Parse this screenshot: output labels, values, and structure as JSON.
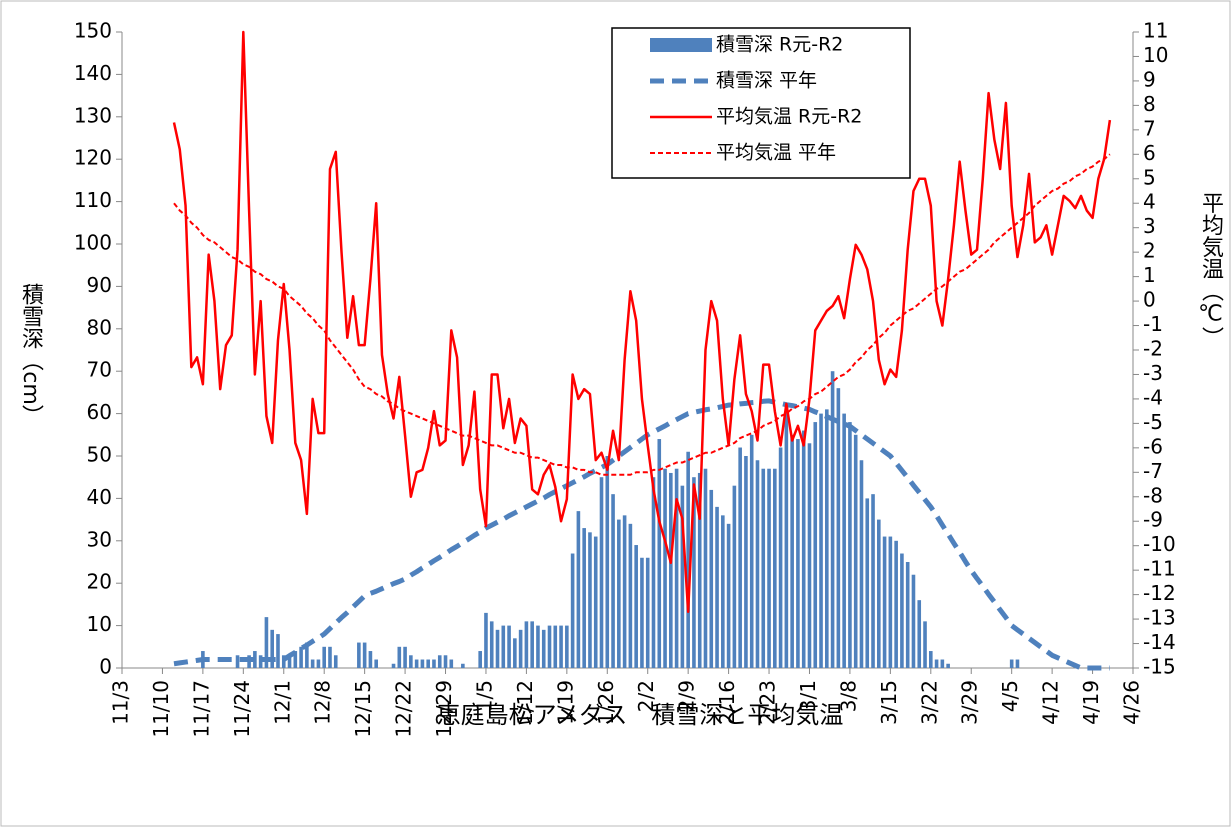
{
  "chart_data": {
    "type": "combo",
    "title": "恵庭島松アメダス　積雪深と平均気温",
    "y_label": "積雪深（cm）",
    "y2_label": "平均気温（℃）",
    "categories": [
      "11/3",
      null,
      null,
      null,
      null,
      null,
      null,
      "11/10",
      null,
      null,
      null,
      null,
      null,
      null,
      "11/17",
      null,
      null,
      null,
      null,
      null,
      null,
      "11/24",
      null,
      null,
      null,
      null,
      null,
      null,
      "12/1",
      null,
      null,
      null,
      null,
      null,
      null,
      "12/8",
      null,
      null,
      null,
      null,
      null,
      null,
      "12/15",
      null,
      null,
      null,
      null,
      null,
      null,
      "12/22",
      null,
      null,
      null,
      null,
      null,
      null,
      "12/29",
      null,
      null,
      null,
      null,
      null,
      null,
      "1/5",
      null,
      null,
      null,
      null,
      null,
      null,
      "1/12",
      null,
      null,
      null,
      null,
      null,
      null,
      "1/19",
      null,
      null,
      null,
      null,
      null,
      null,
      "1/26",
      null,
      null,
      null,
      null,
      null,
      null,
      "2/2",
      null,
      null,
      null,
      null,
      null,
      null,
      "2/9",
      null,
      null,
      null,
      null,
      null,
      null,
      "2/16",
      null,
      null,
      null,
      null,
      null,
      null,
      "2/23",
      null,
      null,
      null,
      null,
      null,
      null,
      "3/1",
      null,
      null,
      null,
      null,
      null,
      null,
      "3/8",
      null,
      null,
      null,
      null,
      null,
      null,
      "3/15",
      null,
      null,
      null,
      null,
      null,
      null,
      "3/22",
      null,
      null,
      null,
      null,
      null,
      null,
      "3/29",
      null,
      null,
      null,
      null,
      null,
      null,
      "4/5",
      null,
      null,
      null,
      null,
      null,
      null,
      "4/12",
      null,
      null,
      null,
      null,
      null,
      null,
      "4/19",
      null,
      null,
      null,
      null,
      null,
      null,
      "4/26"
    ],
    "ylim": [
      0,
      150
    ],
    "yticks": [
      0,
      10,
      20,
      30,
      40,
      50,
      60,
      70,
      80,
      90,
      100,
      110,
      120,
      130,
      140,
      150
    ],
    "y2lim": [
      -15,
      11
    ],
    "y2ticks": [
      -15,
      -14,
      -13,
      -12,
      -11,
      -10,
      -9,
      -8,
      -7,
      -6,
      -5,
      -4,
      -3,
      -2,
      -1,
      0,
      1,
      2,
      3,
      4,
      5,
      6,
      7,
      8,
      9,
      10,
      11
    ],
    "series": [
      {
        "name": "積雪深 R元-R2",
        "kind": "bar",
        "color": "#4f81bd",
        "values": [
          null,
          null,
          null,
          null,
          null,
          null,
          null,
          null,
          null,
          0,
          0,
          0,
          0,
          0,
          4,
          0,
          0,
          0,
          0,
          0,
          3,
          0,
          3,
          4,
          3,
          12,
          9,
          8,
          3,
          3,
          4,
          5,
          6,
          2,
          2,
          5,
          5,
          3,
          0,
          0,
          0,
          6,
          6,
          4,
          2,
          0,
          0,
          1,
          5,
          5,
          3,
          2,
          2,
          2,
          2,
          3,
          3,
          2,
          0,
          1,
          0,
          0,
          4,
          13,
          11,
          9,
          10,
          10,
          7,
          9,
          11,
          11,
          10,
          9,
          10,
          10,
          10,
          10,
          27,
          37,
          33,
          32,
          31,
          45,
          50,
          41,
          35,
          36,
          34,
          29,
          26,
          26,
          45,
          54,
          47,
          46,
          47,
          43,
          51,
          45,
          46,
          47,
          42,
          38,
          36,
          34,
          43,
          52,
          50,
          55,
          49,
          47,
          47,
          47,
          52,
          62,
          55,
          54,
          56,
          53,
          58,
          60,
          61,
          70,
          66,
          60,
          58,
          55,
          49,
          40,
          41,
          35,
          31,
          31,
          30,
          27,
          25,
          22,
          16,
          11,
          4,
          2,
          2,
          1,
          0,
          0,
          0,
          0,
          0,
          0,
          0,
          0,
          0,
          0,
          2,
          2,
          0,
          0,
          0,
          0,
          0,
          0,
          0,
          0,
          0,
          0,
          0,
          0,
          0,
          0,
          0,
          0,
          null,
          null,
          null,
          null
        ]
      },
      {
        "name": "積雪深 平年",
        "kind": "line",
        "line_style": "dashed",
        "color": "#4f81bd",
        "values": [
          null,
          null,
          null,
          null,
          null,
          null,
          null,
          null,
          null,
          1,
          1.2,
          1.4,
          1.6,
          1.8,
          2,
          2,
          2,
          2,
          2,
          2,
          2,
          2,
          2,
          2,
          2,
          2,
          2,
          2,
          2,
          2.9,
          3.7,
          4.6,
          5.4,
          6.3,
          7.1,
          8,
          9.3,
          10.6,
          11.9,
          13.1,
          14.4,
          15.7,
          17,
          17.6,
          18.1,
          18.7,
          19.3,
          19.9,
          20.4,
          21,
          21.9,
          22.7,
          23.6,
          24.4,
          25.3,
          26.1,
          27,
          27.9,
          28.7,
          29.6,
          30.4,
          31.3,
          32.1,
          33,
          33.7,
          34.4,
          35.1,
          35.9,
          36.6,
          37.3,
          38,
          38.7,
          39.4,
          40.1,
          40.9,
          41.6,
          42.3,
          43,
          43.7,
          44.4,
          45.1,
          45.9,
          46.6,
          47.3,
          48,
          49,
          50,
          51,
          52,
          53,
          54,
          55,
          55.7,
          56.4,
          57.1,
          57.9,
          58.6,
          59.3,
          60,
          60.3,
          60.6,
          60.9,
          61.1,
          61.4,
          61.7,
          62,
          62.1,
          62.3,
          62.4,
          62.6,
          62.7,
          62.9,
          63,
          62.7,
          62.4,
          62.1,
          61.9,
          61.6,
          61.3,
          61,
          60.4,
          59.9,
          59.3,
          58.7,
          58.1,
          57.6,
          57,
          56,
          55,
          54,
          53,
          52,
          51,
          50,
          48.3,
          46.6,
          44.9,
          43.1,
          41.4,
          39.7,
          38,
          35.9,
          33.7,
          31.6,
          29.4,
          27.3,
          25.1,
          23,
          21.1,
          19.3,
          17.4,
          15.6,
          13.7,
          11.9,
          10,
          9,
          8,
          7,
          6,
          5,
          4,
          3,
          2.4,
          1.8,
          1.2,
          0.6,
          0,
          0,
          0,
          0,
          0,
          0,
          null,
          null,
          null,
          null
        ]
      },
      {
        "name": "平均気温 R元-R2",
        "kind": "line",
        "line_style": "solid",
        "axis": "y2",
        "color": "#ff0000",
        "values": [
          null,
          null,
          null,
          null,
          null,
          null,
          null,
          null,
          null,
          7.3,
          6.2,
          3.9,
          -2.7,
          -2.3,
          -3.4,
          1.9,
          0.0,
          -3.6,
          -1.8,
          -1.4,
          2.1,
          11,
          3.7,
          -3.0,
          0.0,
          -4.7,
          -5.8,
          -1.6,
          0.7,
          -2.0,
          -5.8,
          -6.5,
          -8.7,
          -4.0,
          -5.4,
          -5.4,
          5.4,
          6.1,
          2.0,
          -1.5,
          0.2,
          -1.8,
          -1.8,
          0.9,
          4.0,
          -2.2,
          -3.8,
          -4.8,
          -3.1,
          -5.5,
          -8.0,
          -7.0,
          -6.9,
          -6.0,
          -4.5,
          -5.9,
          -5.7,
          -1.2,
          -2.3,
          -6.7,
          -5.9,
          -3.7,
          -7.7,
          -9.2,
          -3.0,
          -3.0,
          -5.2,
          -4.0,
          -5.8,
          -4.8,
          -5.1,
          -7.7,
          -7.9,
          -7.1,
          -6.7,
          -7.6,
          -9.0,
          -8.1,
          -3.0,
          -4.0,
          -3.6,
          -3.8,
          -6.5,
          -6.2,
          -6.9,
          -5.3,
          -6.5,
          -2.4,
          0.4,
          -0.8,
          -4.0,
          -5.9,
          -7.7,
          -9.0,
          -9.8,
          -10.7,
          -8.1,
          -8.9,
          -12.7,
          -7.5,
          -8.9,
          -2.0,
          0.0,
          -0.8,
          -4.0,
          -5.9,
          -3.2,
          -1.4,
          -3.8,
          -4.5,
          -5.7,
          -2.6,
          -2.6,
          -4.5,
          -5.9,
          -4.2,
          -5.7,
          -5.1,
          -5.9,
          -4.0,
          -1.2,
          -0.8,
          -0.4,
          -0.2,
          0.2,
          -0.7,
          0.9,
          2.3,
          1.9,
          1.3,
          0.0,
          -2.4,
          -3.4,
          -2.8,
          -3.1,
          -1.2,
          2.1,
          4.5,
          5.0,
          5.0,
          3.9,
          0.0,
          -1.0,
          0.9,
          3.1,
          5.7,
          3.7,
          1.9,
          2.1,
          5.0,
          8.5,
          6.6,
          5.4,
          8.1,
          3.9,
          1.8,
          3.1,
          5.2,
          2.4,
          2.6,
          3.1,
          1.9,
          3.1,
          4.3,
          4.1,
          3.8,
          4.3,
          3.7,
          3.4,
          5.0,
          5.8,
          7.4,
          null,
          null,
          null,
          null
        ]
      },
      {
        "name": "平均気温 平年",
        "kind": "line",
        "line_style": "short-dashed",
        "axis": "y2",
        "color": "#ff0000",
        "values": [
          null,
          null,
          null,
          null,
          null,
          null,
          null,
          null,
          null,
          4.0,
          3.7,
          3.5,
          3.2,
          3.0,
          2.7,
          2.5,
          2.4,
          2.2,
          2.0,
          1.8,
          1.7,
          1.5,
          1.4,
          1.2,
          1.1,
          0.9,
          0.8,
          0.6,
          0.5,
          0.2,
          0.0,
          -0.2,
          -0.5,
          -0.7,
          -1.0,
          -1.2,
          -1.6,
          -1.9,
          -2.2,
          -2.5,
          -2.8,
          -3.2,
          -3.5,
          -3.6,
          -3.8,
          -3.9,
          -4.1,
          -4.2,
          -4.4,
          -4.5,
          -4.6,
          -4.7,
          -4.8,
          -4.9,
          -5.0,
          -5.1,
          -5.2,
          -5.3,
          -5.4,
          -5.5,
          -5.5,
          -5.6,
          -5.7,
          -5.8,
          -5.9,
          -5.9,
          -6.0,
          -6.1,
          -6.2,
          -6.2,
          -6.3,
          -6.4,
          -6.4,
          -6.5,
          -6.6,
          -6.7,
          -6.7,
          -6.8,
          -6.8,
          -6.9,
          -6.9,
          -7.0,
          -7.0,
          -7.1,
          -7.1,
          -7.1,
          -7.1,
          -7.1,
          -7.1,
          -7.0,
          -7.0,
          -7.0,
          -6.9,
          -6.9,
          -6.8,
          -6.7,
          -6.6,
          -6.6,
          -6.5,
          -6.4,
          -6.3,
          -6.2,
          -6.2,
          -6.1,
          -6.0,
          -5.9,
          -5.8,
          -5.6,
          -5.5,
          -5.4,
          -5.3,
          -5.1,
          -5.0,
          -4.9,
          -4.7,
          -4.6,
          -4.4,
          -4.3,
          -4.1,
          -4.0,
          -3.8,
          -3.7,
          -3.5,
          -3.3,
          -3.1,
          -3.0,
          -2.8,
          -2.5,
          -2.3,
          -2.0,
          -1.8,
          -1.5,
          -1.3,
          -1.0,
          -0.8,
          -0.6,
          -0.4,
          -0.3,
          -0.1,
          0.1,
          0.3,
          0.5,
          0.6,
          0.8,
          1.0,
          1.2,
          1.3,
          1.5,
          1.7,
          1.9,
          2.1,
          2.4,
          2.6,
          2.8,
          3.0,
          3.2,
          3.4,
          3.6,
          3.9,
          4.1,
          4.3,
          4.5,
          4.6,
          4.8,
          4.9,
          5.1,
          5.2,
          5.4,
          5.5,
          5.7,
          5.8,
          6.0,
          null,
          null,
          null,
          null
        ]
      }
    ]
  }
}
